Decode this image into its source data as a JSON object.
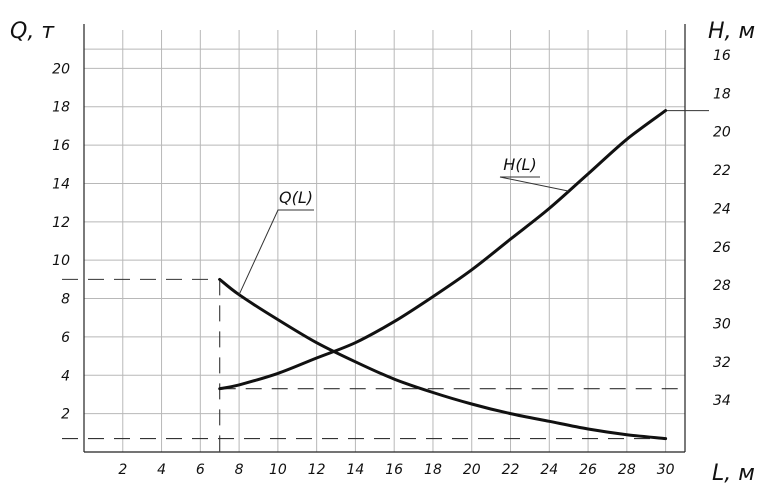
{
  "chart_data": {
    "type": "line",
    "title": "",
    "x_axis": {
      "label": "L, м",
      "range": [
        0,
        31
      ],
      "ticks": [
        2,
        4,
        6,
        8,
        10,
        12,
        14,
        16,
        18,
        20,
        22,
        24,
        26,
        28,
        30
      ]
    },
    "y_left_axis": {
      "label": "Q, т",
      "range": [
        0,
        22
      ],
      "ticks": [
        2,
        4,
        6,
        8,
        10,
        12,
        14,
        16,
        18,
        20
      ]
    },
    "y_right_axis": {
      "label": "H, м",
      "range": [
        36.7,
        14.7
      ],
      "inverted": true,
      "ticks": [
        16,
        18,
        20,
        22,
        24,
        26,
        28,
        30,
        32,
        34
      ]
    },
    "grid": true,
    "series": [
      {
        "name": "Q(L)",
        "axis": "left",
        "x": [
          7,
          8,
          10,
          12,
          14,
          16,
          18,
          20,
          22,
          24,
          26,
          28,
          30
        ],
        "y": [
          9.0,
          8.2,
          6.9,
          5.7,
          4.7,
          3.8,
          3.1,
          2.5,
          2.0,
          1.6,
          1.2,
          0.9,
          0.7
        ]
      },
      {
        "name": "H(L)",
        "axis": "right",
        "x": [
          7,
          8,
          10,
          12,
          14,
          16,
          18,
          20,
          22,
          24,
          26,
          28,
          30
        ],
        "y": [
          33.4,
          33.2,
          32.6,
          31.8,
          31.0,
          29.9,
          28.6,
          27.2,
          25.6,
          24.0,
          22.2,
          20.4,
          18.9
        ]
      }
    ],
    "reference_lines": [
      {
        "axis": "left",
        "y": 9,
        "x_from": 0,
        "x_to": 7
      },
      {
        "axis": "x",
        "x": 7,
        "y_from": 0,
        "y_to": 9
      },
      {
        "axis": "right",
        "y": 33.4,
        "x_from": 7,
        "x_to": 31
      },
      {
        "axis": "left",
        "y": 0.7,
        "x_from": 0,
        "x_to": 30
      }
    ],
    "annotations": [
      {
        "text": "Q(L)",
        "target_series": "Q(L)"
      },
      {
        "text": "H(L)",
        "target_series": "H(L)"
      }
    ]
  }
}
